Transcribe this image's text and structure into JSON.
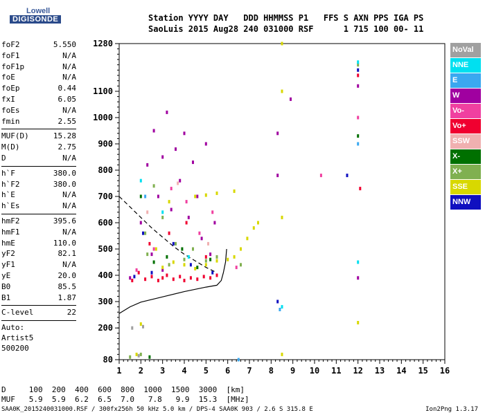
{
  "logo": {
    "line1": "Lowell",
    "line2": "DIGISONDE"
  },
  "header": {
    "line1": "Station YYYY DAY   DDD HHMMSS P1   FFS S AXN PPS IGA PS",
    "line2": "SaoLuis 2015 Aug28 240 031000 RSF      1 715 100 00- 11"
  },
  "params": {
    "group1": [
      {
        "k": "foF2",
        "v": "5.550"
      },
      {
        "k": "foF1",
        "v": "N/A"
      },
      {
        "k": "foF1p",
        "v": "N/A"
      },
      {
        "k": "foE",
        "v": "N/A"
      },
      {
        "k": "foEp",
        "v": "0.44"
      },
      {
        "k": "fxI",
        "v": "6.05"
      },
      {
        "k": "foEs",
        "v": "N/A"
      },
      {
        "k": "fmin",
        "v": "2.55"
      }
    ],
    "group2": [
      {
        "k": "MUF(D)",
        "v": "15.28"
      },
      {
        "k": "M(D)",
        "v": "2.75"
      },
      {
        "k": "D",
        "v": "N/A"
      }
    ],
    "group3": [
      {
        "k": "h`F",
        "v": "380.0"
      },
      {
        "k": "h`F2",
        "v": "380.0"
      },
      {
        "k": "h`E",
        "v": "N/A"
      },
      {
        "k": "h`Es",
        "v": "N/A"
      }
    ],
    "group4": [
      {
        "k": "hmF2",
        "v": "395.6"
      },
      {
        "k": "hmF1",
        "v": "N/A"
      },
      {
        "k": "hmE",
        "v": "110.0"
      },
      {
        "k": "yF2",
        "v": "82.1"
      },
      {
        "k": "yF1",
        "v": "N/A"
      },
      {
        "k": "yE",
        "v": "20.0"
      },
      {
        "k": "B0",
        "v": "85.5"
      },
      {
        "k": "B1",
        "v": "1.87"
      }
    ],
    "group5": [
      {
        "k": "C-level",
        "v": "22"
      }
    ],
    "auto": [
      "Auto:",
      "Artist5",
      "500200"
    ]
  },
  "bottom": {
    "d_line": "D     100  200  400  600  800  1000  1500  3000  [km]",
    "muf_line": "MUF   5.9  5.9  6.2  6.5  7.0   7.8   9.9  15.3  [MHz]"
  },
  "footer": {
    "left": "SAA0K_2015240031000.RSF / 300fx256h 50 kHz 5.0 km / DPS-4 SAA0K 903 / 2.6 S 315.8 E",
    "right": "Ion2Png 1.3.17"
  },
  "legend": [
    {
      "label": "NoVal",
      "color": "#a0a0a0"
    },
    {
      "label": "NNE",
      "color": "#00e0f0"
    },
    {
      "label": "E",
      "color": "#3aa8f0"
    },
    {
      "label": "W",
      "color": "#a000a0"
    },
    {
      "label": "Vo-",
      "color": "#f040a0"
    },
    {
      "label": "Vo+",
      "color": "#f00030"
    },
    {
      "label": "SSW",
      "color": "#f0b0b0"
    },
    {
      "label": "X-",
      "color": "#007000"
    },
    {
      "label": "X+",
      "color": "#80b050"
    },
    {
      "label": "SSE",
      "color": "#d8d800"
    },
    {
      "label": "NNW",
      "color": "#1010c0"
    }
  ],
  "chart_data": {
    "type": "scatter",
    "title": "",
    "xlabel": "",
    "ylabel": "",
    "xlim": [
      1,
      16
    ],
    "ylim": [
      80,
      1280
    ],
    "x_ticks": [
      "1",
      "2",
      "3",
      "4",
      "5",
      "6",
      "7",
      "8",
      "9",
      "10",
      "11",
      "12",
      "13",
      "14",
      "15",
      "16"
    ],
    "y_ticks": [
      "80",
      "200",
      "300",
      "400",
      "500",
      "600",
      "700",
      "800",
      "900",
      "1000",
      "1100",
      "1280"
    ],
    "grid": false,
    "legend_position": "right",
    "series": [
      {
        "name": "W",
        "color": "#a000a0",
        "points": [
          [
            1.5,
            390
          ],
          [
            2.0,
            600
          ],
          [
            2.3,
            820
          ],
          [
            2.6,
            950
          ],
          [
            2.8,
            700
          ],
          [
            3.0,
            850
          ],
          [
            3.2,
            1020
          ],
          [
            3.4,
            650
          ],
          [
            3.6,
            880
          ],
          [
            3.8,
            760
          ],
          [
            4.0,
            940
          ],
          [
            4.2,
            620
          ],
          [
            4.4,
            830
          ],
          [
            4.6,
            700
          ],
          [
            4.8,
            540
          ],
          [
            5.0,
            900
          ],
          [
            5.2,
            480
          ],
          [
            5.4,
            600
          ],
          [
            3.0,
            420
          ],
          [
            2.5,
            480
          ],
          [
            8.3,
            940
          ],
          [
            8.3,
            780
          ],
          [
            8.9,
            1070
          ],
          [
            12.0,
            1120
          ],
          [
            12.0,
            390
          ]
        ]
      },
      {
        "name": "Vo+",
        "color": "#f00030",
        "points": [
          [
            1.6,
            380
          ],
          [
            1.9,
            410
          ],
          [
            2.2,
            385
          ],
          [
            2.5,
            395
          ],
          [
            2.8,
            380
          ],
          [
            3.0,
            390
          ],
          [
            3.2,
            400
          ],
          [
            3.5,
            385
          ],
          [
            3.8,
            395
          ],
          [
            4.0,
            380
          ],
          [
            4.3,
            390
          ],
          [
            4.6,
            385
          ],
          [
            4.9,
            395
          ],
          [
            5.2,
            390
          ],
          [
            5.5,
            400
          ],
          [
            2.4,
            520
          ],
          [
            3.3,
            560
          ],
          [
            4.1,
            600
          ],
          [
            5.0,
            470
          ],
          [
            12.0,
            1160
          ],
          [
            12.1,
            730
          ]
        ]
      },
      {
        "name": "SSE",
        "color": "#d8d800",
        "points": [
          [
            1.8,
            100
          ],
          [
            2.0,
            215
          ],
          [
            3.0,
            430
          ],
          [
            3.5,
            450
          ],
          [
            4.0,
            440
          ],
          [
            4.5,
            425
          ],
          [
            5.0,
            440
          ],
          [
            5.5,
            455
          ],
          [
            6.0,
            460
          ],
          [
            6.3,
            470
          ],
          [
            6.6,
            500
          ],
          [
            6.9,
            540
          ],
          [
            7.2,
            580
          ],
          [
            7.4,
            600
          ],
          [
            4.5,
            700
          ],
          [
            5.0,
            705
          ],
          [
            5.5,
            712
          ],
          [
            6.3,
            720
          ],
          [
            8.5,
            1280
          ],
          [
            8.5,
            1100
          ],
          [
            8.5,
            620
          ],
          [
            8.5,
            100
          ],
          [
            12.0,
            220
          ],
          [
            3.3,
            680
          ],
          [
            2.7,
            500
          ]
        ]
      },
      {
        "name": "X+",
        "color": "#80b050",
        "points": [
          [
            1.5,
            90
          ],
          [
            2.0,
            100
          ],
          [
            2.2,
            560
          ],
          [
            2.3,
            480
          ],
          [
            2.6,
            740
          ],
          [
            3.0,
            620
          ],
          [
            3.3,
            440
          ],
          [
            3.6,
            520
          ],
          [
            4.0,
            460
          ],
          [
            4.4,
            500
          ],
          [
            5.0,
            455
          ],
          [
            5.5,
            470
          ],
          [
            12.0,
            1200
          ],
          [
            6.6,
            440
          ]
        ]
      },
      {
        "name": "X-",
        "color": "#007000",
        "points": [
          [
            2.0,
            700
          ],
          [
            2.6,
            450
          ],
          [
            3.2,
            470
          ],
          [
            3.9,
            500
          ],
          [
            4.6,
            430
          ],
          [
            5.2,
            460
          ],
          [
            12.0,
            930
          ],
          [
            2.4,
            90
          ]
        ]
      },
      {
        "name": "NNW",
        "color": "#1010c0",
        "points": [
          [
            1.7,
            395
          ],
          [
            2.5,
            410
          ],
          [
            3.5,
            520
          ],
          [
            4.3,
            440
          ],
          [
            5.3,
            410
          ],
          [
            8.3,
            300
          ],
          [
            12.0,
            1180
          ],
          [
            11.5,
            780
          ],
          [
            2.1,
            560
          ]
        ]
      },
      {
        "name": "NNE",
        "color": "#00e0f0",
        "points": [
          [
            2.0,
            760
          ],
          [
            3.0,
            640
          ],
          [
            4.2,
            470
          ],
          [
            8.5,
            280
          ],
          [
            12.0,
            450
          ],
          [
            12.0,
            1210
          ]
        ]
      },
      {
        "name": "E",
        "color": "#3aa8f0",
        "points": [
          [
            2.2,
            700
          ],
          [
            6.5,
            80
          ],
          [
            12.0,
            900
          ],
          [
            8.4,
            270
          ]
        ]
      },
      {
        "name": "Vo-",
        "color": "#f040a0",
        "points": [
          [
            1.8,
            420
          ],
          [
            2.6,
            500
          ],
          [
            3.4,
            730
          ],
          [
            4.1,
            680
          ],
          [
            4.7,
            560
          ],
          [
            5.3,
            640
          ],
          [
            6.4,
            430
          ],
          [
            10.3,
            780
          ],
          [
            12.0,
            1000
          ]
        ]
      },
      {
        "name": "SSW",
        "color": "#f0b0b0",
        "points": [
          [
            2.3,
            640
          ],
          [
            3.7,
            750
          ],
          [
            5.1,
            520
          ]
        ]
      },
      {
        "name": "NoVal",
        "color": "#a0a0a0",
        "points": [
          [
            1.6,
            200
          ],
          [
            2.1,
            205
          ],
          [
            1.9,
            95
          ]
        ]
      }
    ],
    "curves": [
      {
        "style": "solid",
        "points": [
          [
            1,
            255
          ],
          [
            1.5,
            280
          ],
          [
            2,
            298
          ],
          [
            3,
            318
          ],
          [
            4,
            338
          ],
          [
            5,
            355
          ],
          [
            5.5,
            362
          ],
          [
            5.7,
            380
          ],
          [
            5.8,
            410
          ],
          [
            5.9,
            450
          ],
          [
            5.95,
            500
          ]
        ]
      },
      {
        "style": "dashed",
        "points": [
          [
            1,
            700
          ],
          [
            1.5,
            660
          ],
          [
            2,
            620
          ],
          [
            2.5,
            580
          ],
          [
            3,
            545
          ],
          [
            3.5,
            510
          ],
          [
            4,
            480
          ],
          [
            4.5,
            455
          ],
          [
            5,
            430
          ],
          [
            5.5,
            410
          ]
        ]
      }
    ]
  }
}
